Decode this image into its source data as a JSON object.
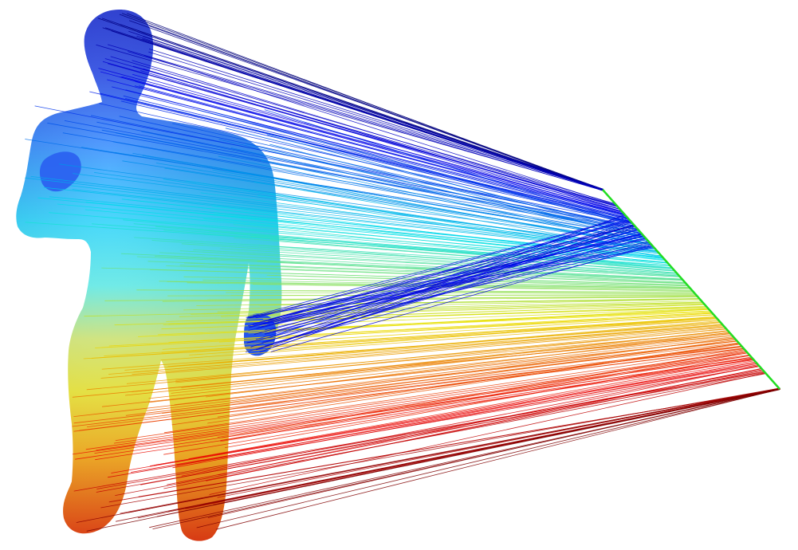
{
  "figure": {
    "background": "#ffffff",
    "source_shape": "human-body-mesh",
    "target_shape": "line-segment",
    "colormap": "jet",
    "target_line_color": "#22dd22",
    "correspondence_count": 560,
    "sample_step": 2
  }
}
